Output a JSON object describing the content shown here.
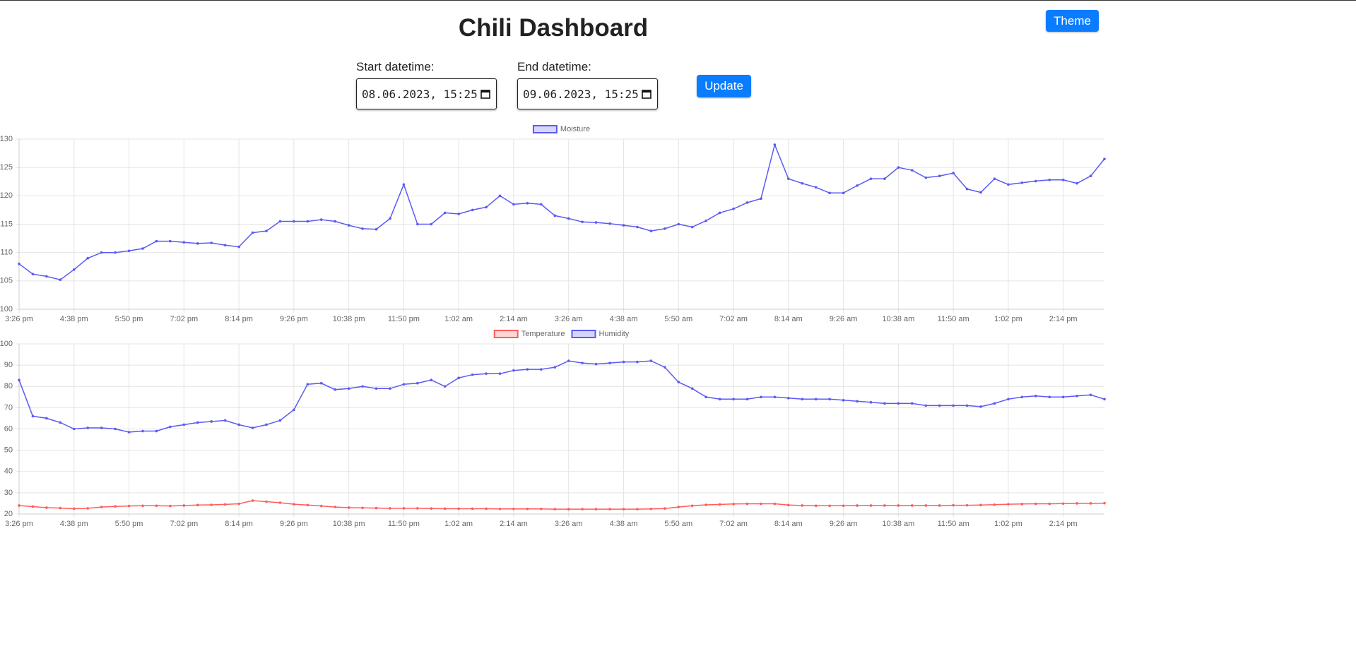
{
  "header": {
    "title": "Chili Dashboard",
    "theme_button": "Theme"
  },
  "controls": {
    "start_label": "Start datetime:",
    "start_value": "08.06.2023, 15:25",
    "end_label": "End datetime:",
    "end_value": "09.06.2023, 15:25",
    "update_button": "Update"
  },
  "chart_data": [
    {
      "type": "line",
      "legend": "top",
      "grid": true,
      "categories": [
        "3:26 pm",
        null,
        null,
        null,
        "4:38 pm",
        null,
        null,
        null,
        "5:50 pm",
        null,
        null,
        null,
        "7:02 pm",
        null,
        null,
        null,
        "8:14 pm",
        null,
        null,
        null,
        "9:26 pm",
        null,
        null,
        null,
        "10:38 pm",
        null,
        null,
        null,
        "11:50 pm",
        null,
        null,
        null,
        "1:02 am",
        null,
        null,
        null,
        "2:14 am",
        null,
        null,
        null,
        "3:26 am",
        null,
        null,
        null,
        "4:38 am",
        null,
        null,
        null,
        "5:50 am",
        null,
        null,
        null,
        "7:02 am",
        null,
        null,
        null,
        "8:14 am",
        null,
        null,
        null,
        "9:26 am",
        null,
        null,
        null,
        "10:38 am",
        null,
        null,
        null,
        "11:50 am",
        null,
        null,
        null,
        "1:02 pm",
        null,
        null,
        null,
        "2:14 pm",
        null,
        null,
        null
      ],
      "ylim": [
        100,
        130
      ],
      "yticks": [
        100,
        105,
        110,
        115,
        120,
        125,
        130
      ],
      "series": [
        {
          "name": "Moisture",
          "color": "#5a5af5",
          "values": [
            108,
            106.2,
            105.8,
            105.2,
            107,
            109,
            110,
            110,
            110.3,
            110.7,
            112,
            112,
            111.8,
            111.6,
            111.7,
            111.3,
            111,
            113.5,
            113.8,
            115.5,
            115.5,
            115.5,
            115.8,
            115.5,
            114.8,
            114.2,
            114.1,
            116,
            122,
            115,
            115,
            117,
            116.8,
            117.5,
            118,
            120,
            118.5,
            118.7,
            118.5,
            116.5,
            116,
            115.4,
            115.3,
            115.1,
            114.8,
            114.5,
            113.8,
            114.2,
            115,
            114.5,
            115.6,
            117,
            117.7,
            118.8,
            119.5,
            129,
            123,
            122.2,
            121.5,
            120.5,
            120.5,
            121.8,
            123,
            123,
            125,
            124.5,
            123.2,
            123.5,
            124,
            121.2,
            120.6,
            123,
            122,
            122.3,
            122.6,
            122.8,
            122.8,
            122.2,
            123.5,
            126.5
          ]
        }
      ]
    },
    {
      "type": "line",
      "legend": "top",
      "grid": true,
      "categories": [
        "3:26 pm",
        null,
        null,
        null,
        "4:38 pm",
        null,
        null,
        null,
        "5:50 pm",
        null,
        null,
        null,
        "7:02 pm",
        null,
        null,
        null,
        "8:14 pm",
        null,
        null,
        null,
        "9:26 pm",
        null,
        null,
        null,
        "10:38 pm",
        null,
        null,
        null,
        "11:50 pm",
        null,
        null,
        null,
        "1:02 am",
        null,
        null,
        null,
        "2:14 am",
        null,
        null,
        null,
        "3:26 am",
        null,
        null,
        null,
        "4:38 am",
        null,
        null,
        null,
        "5:50 am",
        null,
        null,
        null,
        "7:02 am",
        null,
        null,
        null,
        "8:14 am",
        null,
        null,
        null,
        "9:26 am",
        null,
        null,
        null,
        "10:38 am",
        null,
        null,
        null,
        "11:50 am",
        null,
        null,
        null,
        "1:02 pm",
        null,
        null,
        null,
        "2:14 pm",
        null,
        null,
        null
      ],
      "ylim": [
        20,
        100
      ],
      "yticks": [
        20,
        30,
        40,
        50,
        60,
        70,
        80,
        90,
        100
      ],
      "series": [
        {
          "name": "Temperature",
          "color": "#ff5c5c",
          "values": [
            24,
            23.5,
            23,
            22.8,
            22.5,
            22.7,
            23.3,
            23.6,
            23.8,
            23.9,
            23.9,
            23.8,
            24,
            24.2,
            24.3,
            24.5,
            24.8,
            26.3,
            25.8,
            25.3,
            24.6,
            24.2,
            23.8,
            23.3,
            23,
            22.9,
            22.8,
            22.7,
            22.7,
            22.7,
            22.6,
            22.5,
            22.5,
            22.5,
            22.5,
            22.4,
            22.4,
            22.4,
            22.4,
            22.3,
            22.3,
            22.3,
            22.3,
            22.3,
            22.3,
            22.3,
            22.4,
            22.6,
            23.3,
            23.9,
            24.3,
            24.5,
            24.7,
            24.8,
            24.8,
            24.8,
            24.2,
            24,
            23.9,
            23.9,
            23.9,
            24,
            24,
            24,
            24,
            24,
            24,
            24,
            24.1,
            24.1,
            24.2,
            24.4,
            24.6,
            24.7,
            24.8,
            24.8,
            24.9,
            25,
            25,
            25.1
          ]
        },
        {
          "name": "Humidity",
          "color": "#5a5af5",
          "values": [
            83,
            66,
            65,
            63,
            60,
            60.5,
            60.5,
            60,
            58.5,
            59,
            59,
            61,
            62,
            63,
            63.5,
            64,
            62,
            60.5,
            62,
            64,
            69,
            81,
            81.5,
            78.5,
            79,
            80,
            79,
            79,
            81,
            81.5,
            83,
            80,
            84,
            85.5,
            86,
            86,
            87.5,
            88,
            88,
            89,
            92,
            91,
            90.5,
            91,
            91.5,
            91.5,
            92,
            89,
            82,
            79,
            75,
            74,
            74,
            74,
            75,
            75,
            74.5,
            74,
            74,
            74,
            73.5,
            73,
            72.5,
            72,
            72,
            72,
            71,
            71,
            71,
            71,
            70.5,
            72,
            74,
            75,
            75.5,
            75,
            75,
            75.5,
            76,
            74
          ]
        }
      ]
    }
  ]
}
